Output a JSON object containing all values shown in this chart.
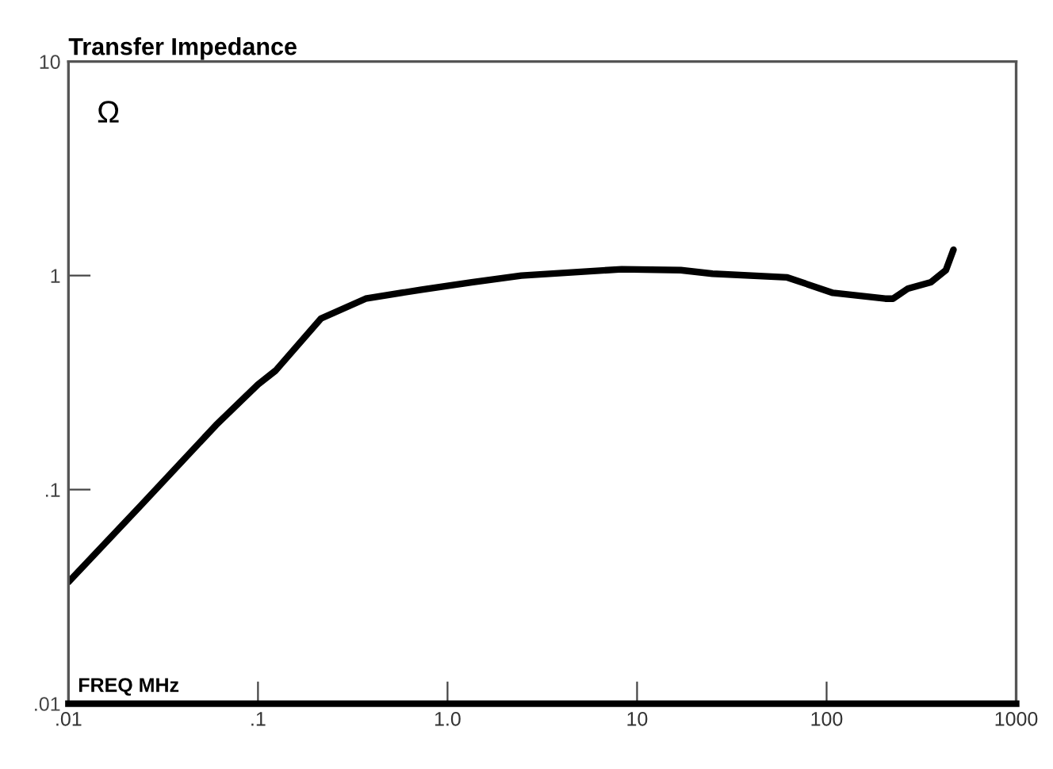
{
  "chart_data": {
    "type": "line",
    "title": "Transfer Impedance",
    "xlabel": "FREQ MHz",
    "ylabel": "Ω",
    "log": "xy",
    "grid": false,
    "legend": false,
    "marker": "none",
    "line_style": "solid",
    "xlim": [
      0.01,
      1000
    ],
    "ylim": [
      0.01,
      10
    ],
    "xticks": [
      {
        "value": 0.01,
        "label": ".01"
      },
      {
        "value": 0.1,
        "label": ".1"
      },
      {
        "value": 1,
        "label": "1.0"
      },
      10,
      100,
      1000
    ],
    "yticks": [
      {
        "value": 0.01,
        "label": ".01"
      },
      {
        "value": 0.1,
        "label": ".1"
      },
      1,
      10
    ],
    "series": [
      {
        "color": "#000000",
        "x": [
          0.01,
          0.024,
          0.06,
          0.1,
          0.124,
          0.215,
          0.37,
          0.73,
          1.34,
          2.45,
          8.3,
          17,
          25,
          62,
          108,
          204,
          224,
          269,
          355,
          426,
          467
        ],
        "values": [
          0.037,
          0.084,
          0.2,
          0.31,
          0.36,
          0.63,
          0.78,
          0.86,
          0.93,
          1.0,
          1.07,
          1.06,
          1.02,
          0.98,
          0.83,
          0.78,
          0.78,
          0.87,
          0.93,
          1.06,
          1.32
        ]
      }
    ]
  }
}
